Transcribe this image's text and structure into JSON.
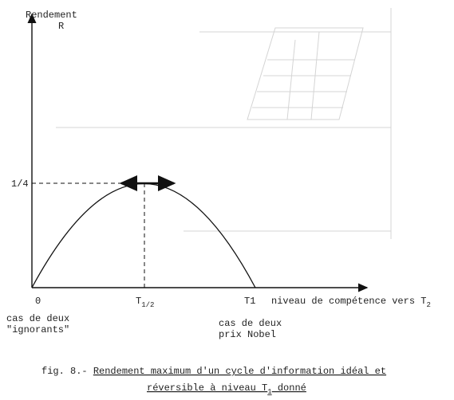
{
  "figure": {
    "y_axis": {
      "title": "Rendement",
      "symbol": "R",
      "tick": "1/4"
    },
    "x_axis": {
      "ticks": [
        {
          "label": "0"
        },
        {
          "label": "T",
          "subscript": "1/2"
        },
        {
          "label": "T1"
        }
      ],
      "title": "niveau de compétence vers T",
      "title_subscript": "2"
    },
    "annotations": [
      {
        "lines": [
          "cas de deux",
          "\"ignorants\""
        ]
      },
      {
        "lines": [
          "cas de deux",
          "prix  Nobel"
        ]
      }
    ],
    "caption": {
      "prefix": "fig. 8.- ",
      "line1": "Rendement maximum d'un cycle d'information idéal et",
      "line2": "réversible à niveau T",
      "line2_subscript": "1",
      "line2_end": " donné"
    }
  }
}
